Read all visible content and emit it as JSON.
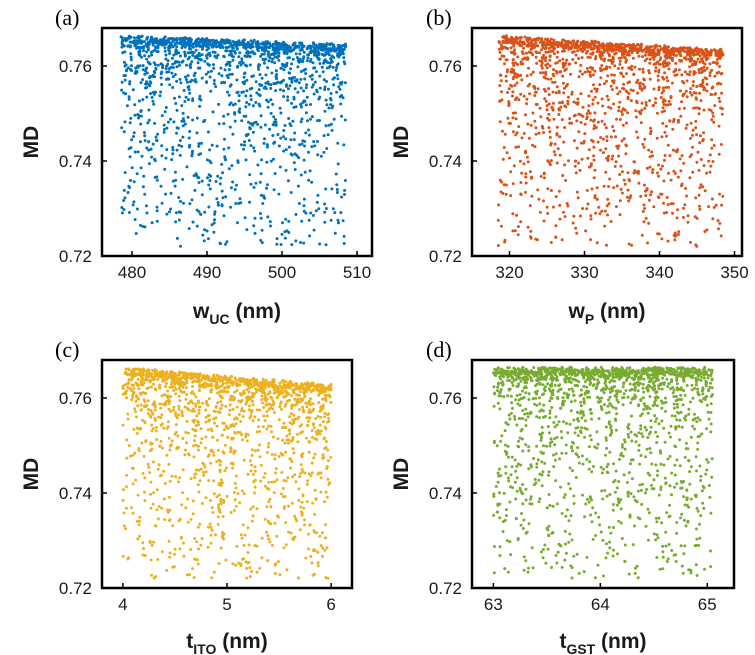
{
  "chart_data": [
    {
      "type": "scatter",
      "panel": "(a)",
      "xlabel_main": "w",
      "xlabel_sub": "UC",
      "xlabel_unit": " (nm)",
      "ylabel": "MD",
      "xlim": [
        476,
        512
      ],
      "ylim": [
        0.72,
        0.768
      ],
      "xticks": [
        480,
        490,
        500,
        510
      ],
      "yticks": [
        0.72,
        0.74,
        0.76
      ],
      "color": "#0072BD",
      "density": {
        "peak": 488,
        "spread": 9,
        "slope": -6e-05
      },
      "x_range": [
        478.5,
        508.5
      ],
      "series": [
        {
          "values": "dense cloud of ~2000 points concentrated near MD 0.760-0.767, sparse tail down to ~0.723"
        }
      ]
    },
    {
      "type": "scatter",
      "panel": "(b)",
      "xlabel_main": "w",
      "xlabel_sub": "P",
      "xlabel_unit": " (nm)",
      "ylabel": "MD",
      "xlim": [
        315,
        351
      ],
      "ylim": [
        0.72,
        0.768
      ],
      "xticks": [
        320,
        330,
        340,
        350
      ],
      "yticks": [
        0.72,
        0.74,
        0.76
      ],
      "color": "#D95319",
      "density": {
        "peak": 331,
        "spread": 8,
        "slope": -0.0001
      },
      "x_range": [
        318.5,
        348.5
      ],
      "series": [
        {
          "values": "dense cloud near MD 0.762-0.767 peaking around 330 nm, falling toward 348 nm"
        }
      ]
    },
    {
      "type": "scatter",
      "panel": "(c)",
      "xlabel_main": "t",
      "xlabel_sub": "ITO",
      "xlabel_unit": " (nm)",
      "ylabel": "MD",
      "xlim": [
        3.8,
        6.2
      ],
      "ylim": [
        0.72,
        0.768
      ],
      "xticks": [
        4,
        5,
        6
      ],
      "yticks": [
        0.72,
        0.74,
        0.76
      ],
      "color": "#EDB120",
      "density": {
        "peak": 4.2,
        "spread": 1.0,
        "slope": -0.0018
      },
      "x_range": [
        4.0,
        6.0
      ],
      "series": [
        {
          "values": "dense cloud with upper envelope decreasing from ~0.767 at 4 nm to ~0.763 at 6 nm"
        }
      ]
    },
    {
      "type": "scatter",
      "panel": "(d)",
      "xlabel_main": "t",
      "xlabel_sub": "GST",
      "xlabel_unit": " (nm)",
      "ylabel": "MD",
      "xlim": [
        62.8,
        65.25
      ],
      "ylim": [
        0.72,
        0.768
      ],
      "xticks": [
        63,
        64,
        65
      ],
      "yticks": [
        0.72,
        0.74,
        0.76
      ],
      "color": "#77AC30",
      "density": {
        "peak": 64.1,
        "spread": 1.2,
        "slope": 0.0
      },
      "x_range": [
        63.0,
        65.05
      ],
      "series": [
        {
          "values": "dense cloud near MD 0.762-0.767 across 63-65 nm, sparse tail to ~0.723"
        }
      ]
    }
  ]
}
